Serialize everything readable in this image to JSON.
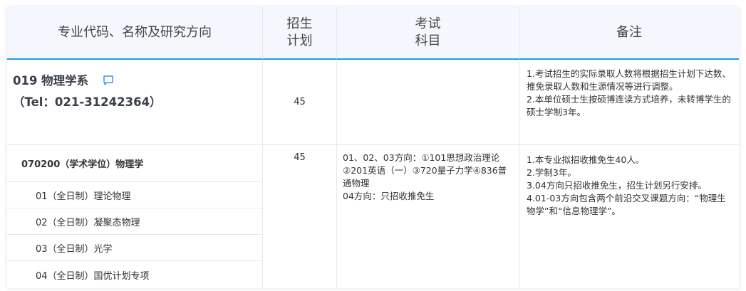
{
  "header": {
    "col1": "专业代码、名称及研究方向",
    "col2_line1": "招生",
    "col2_line2": "计划",
    "col3_line1": "考试",
    "col3_line2": "科目",
    "col4": "备注"
  },
  "department": {
    "name": "019 物理学系",
    "tel": "（Tel：021-31242364）",
    "icon": "comment-icon",
    "quota": "45",
    "notes": [
      "1.考试招生的实际录取人数将根据招生计划下达数、推免录取人数和生源情况等进行调整。",
      "2.本单位硕士生按硕博连读方式培养，未转博学生的硕士学制3年。"
    ]
  },
  "major": {
    "name": "070200（学术学位）物理学",
    "quota": "45",
    "directions": [
      "01（全日制）理论物理",
      "02（全日制）凝聚态物理",
      "03（全日制）光学",
      "04（全日制）国优计划专项"
    ],
    "exams": [
      "01、02、03方向：①101思想政治理论②201英语（一）③720量子力学④836普通物理",
      "04方向：只招收推免生"
    ],
    "notes": [
      "1.本专业拟招收推免生40人。",
      "2.学制3年。",
      "3.04方向只招收推免生，招生计划另行安排。",
      "4.01-03方向包含两个前沿交叉课题方向：“物理生物学”和“信息物理学”。"
    ]
  },
  "colors": {
    "accent": "#1a9ee2",
    "header_bg": "#f4f8fe"
  }
}
